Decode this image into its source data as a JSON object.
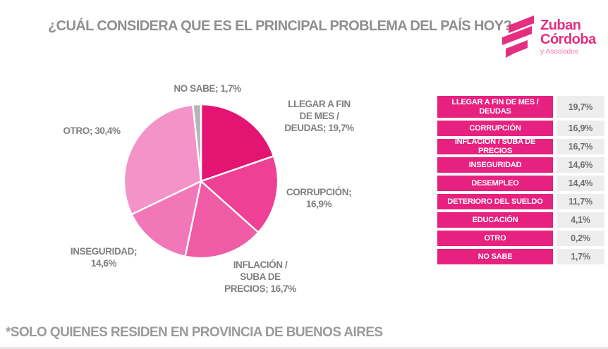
{
  "title": "¿CUÁL CONSIDERA QUE ES EL PRINCIPAL PROBLEMA DEL PAÍS HOY?",
  "logo": {
    "name_line1": "Zuban",
    "name_line2": "Córdoba",
    "subtitle": "y Asociados",
    "color": "#e62e80"
  },
  "chart_data": {
    "type": "pie",
    "title": "¿CUÁL CONSIDERA QUE ES EL PRINCIPAL PROBLEMA DEL PAÍS HOY?",
    "unit": "%",
    "start_angle_deg": 0,
    "direction": "clockwise",
    "slices": [
      {
        "label": "LLEGAR A FIN DE MES / DEUDAS",
        "value": 19.7,
        "color": "#e31472"
      },
      {
        "label": "CORRUPCIÓN",
        "value": 16.9,
        "color": "#ee4095"
      },
      {
        "label": "INFLACIÓN / SUBA DE PRECIOS",
        "value": 16.7,
        "color": "#f05ba6"
      },
      {
        "label": "INSEGURIDAD",
        "value": 14.6,
        "color": "#f277b8"
      },
      {
        "label": "OTRO",
        "value": 30.4,
        "color": "#f493c7"
      },
      {
        "label": "NO SABE",
        "value": 1.7,
        "color": "#b6b6b6"
      }
    ],
    "table": {
      "rows": [
        {
          "label": "LLEGAR A FIN DE MES / DEUDAS",
          "value": "19,7%"
        },
        {
          "label": "CORRUPCIÓN",
          "value": "16,9%"
        },
        {
          "label": "INFLACIÓN / SUBA DE PRECIOS",
          "value": "16,7%"
        },
        {
          "label": "INSEGURIDAD",
          "value": "14,6%"
        },
        {
          "label": "DESEMPLEO",
          "value": "14,4%"
        },
        {
          "label": "DETERIORO DEL SUELDO",
          "value": "11,7%"
        },
        {
          "label": "EDUCACIÓN",
          "value": "4,1%"
        },
        {
          "label": "OTRO",
          "value": "0,2%"
        },
        {
          "label": "NO SABE",
          "value": "1,7%"
        }
      ]
    }
  },
  "pie_labels": [
    {
      "text": "NO SABE; 1,7%"
    },
    {
      "text": "LLEGAR A FIN\nDE MES /\nDEUDAS; 19,7%"
    },
    {
      "text": "CORRUPCIÓN;\n16,9%"
    },
    {
      "text": "INFLACIÓN /\nSUBA DE\nPRECIOS; 16,7%"
    },
    {
      "text": "INSEGURIDAD;\n14,6%"
    },
    {
      "text": "OTRO; 30,4%"
    }
  ],
  "footnote": "*SOLO QUIENES RESIDEN EN PROVINCIA DE BUENOS AIRES",
  "colors": {
    "brand_pink": "#e62e80",
    "table_label_bg": "#e7217f",
    "table_value_bg": "#ededed",
    "title_gray": "#8f8f8f"
  }
}
